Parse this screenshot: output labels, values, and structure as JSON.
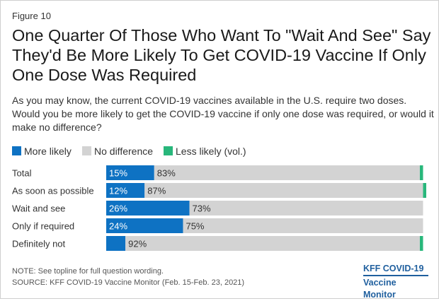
{
  "figure_label": "Figure 10",
  "title": "One Quarter Of Those Who Want To \"Wait And See\" Say They'd Be More Likely To Get COVID-19 Vaccine If Only One Dose Was Required",
  "subtitle": "As you may know, the current COVID-19 vaccines available in the U.S. require two doses. Would you be more likely to get the COVID-19 vaccine if only one dose was required, or would it make no difference?",
  "note": "NOTE: See topline for full question wording.",
  "source": "SOURCE: KFF COVID-19 Vaccine Monitor (Feb. 15-Feb. 23, 2021)",
  "logo": {
    "line1": "KFF COVID-19",
    "line2": "Vaccine Monitor"
  },
  "colors": {
    "more_likely": "#0e72c3",
    "no_difference": "#d3d3d3",
    "less_likely": "#28b77b",
    "logo": "#1f5f9e"
  },
  "chart_data": {
    "type": "bar",
    "orientation": "horizontal",
    "stacked": true,
    "categories": [
      "Total",
      "As soon as possible",
      "Wait and see",
      "Only if required",
      "Definitely not"
    ],
    "series": [
      {
        "name": "More likely",
        "values": [
          15,
          12,
          26,
          24,
          6
        ],
        "labels": [
          "15%",
          "12%",
          "26%",
          "24%",
          ""
        ],
        "color": "#0e72c3"
      },
      {
        "name": "No difference",
        "values": [
          83,
          87,
          73,
          75,
          92
        ],
        "labels": [
          "83%",
          "87%",
          "73%",
          "75%",
          "92%"
        ],
        "color": "#d3d3d3"
      },
      {
        "name": "Less likely (vol.)",
        "values": [
          1,
          1,
          0,
          0,
          1
        ],
        "labels": [
          "",
          "",
          "",
          "",
          ""
        ],
        "color": "#28b77b"
      }
    ],
    "xlim": [
      0,
      100
    ],
    "legend_position": "top-left",
    "grid": false
  }
}
